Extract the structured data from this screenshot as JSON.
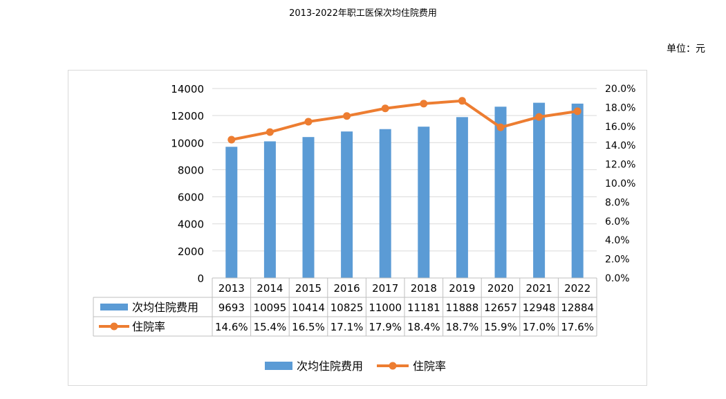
{
  "title": "2013-2022年职工医保次均住院费用",
  "unit_label": "单位：元",
  "chart_data": {
    "type": "bar",
    "categories": [
      "2013",
      "2014",
      "2015",
      "2016",
      "2017",
      "2018",
      "2019",
      "2020",
      "2021",
      "2022"
    ],
    "series": [
      {
        "name": "次均住院费用",
        "type": "bar",
        "axis": "left",
        "color": "#5b9bd5",
        "values": [
          9693,
          10095,
          10414,
          10825,
          11000,
          11181,
          11888,
          12657,
          12948,
          12884
        ],
        "labels": [
          "9693",
          "10095",
          "10414",
          "10825",
          "11000",
          "11181",
          "11888",
          "12657",
          "12948",
          "12884"
        ]
      },
      {
        "name": "住院率",
        "type": "line",
        "axis": "right",
        "color": "#ed7d31",
        "values": [
          14.6,
          15.4,
          16.5,
          17.1,
          17.9,
          18.4,
          18.7,
          15.9,
          17.0,
          17.6
        ],
        "labels": [
          "14.6%",
          "15.4%",
          "16.5%",
          "17.1%",
          "17.9%",
          "18.4%",
          "18.7%",
          "15.9%",
          "17.0%",
          "17.6%"
        ]
      }
    ],
    "y_left": {
      "min": 0,
      "max": 14000,
      "ticks": [
        "0",
        "2000",
        "4000",
        "6000",
        "8000",
        "10000",
        "12000",
        "14000"
      ]
    },
    "y_right": {
      "min": 0,
      "max": 20,
      "ticks": [
        "0.0%",
        "2.0%",
        "4.0%",
        "6.0%",
        "8.0%",
        "10.0%",
        "12.0%",
        "14.0%",
        "16.0%",
        "18.0%",
        "20.0%"
      ]
    },
    "grid": true,
    "data_table": true,
    "legend_position": "bottom"
  }
}
